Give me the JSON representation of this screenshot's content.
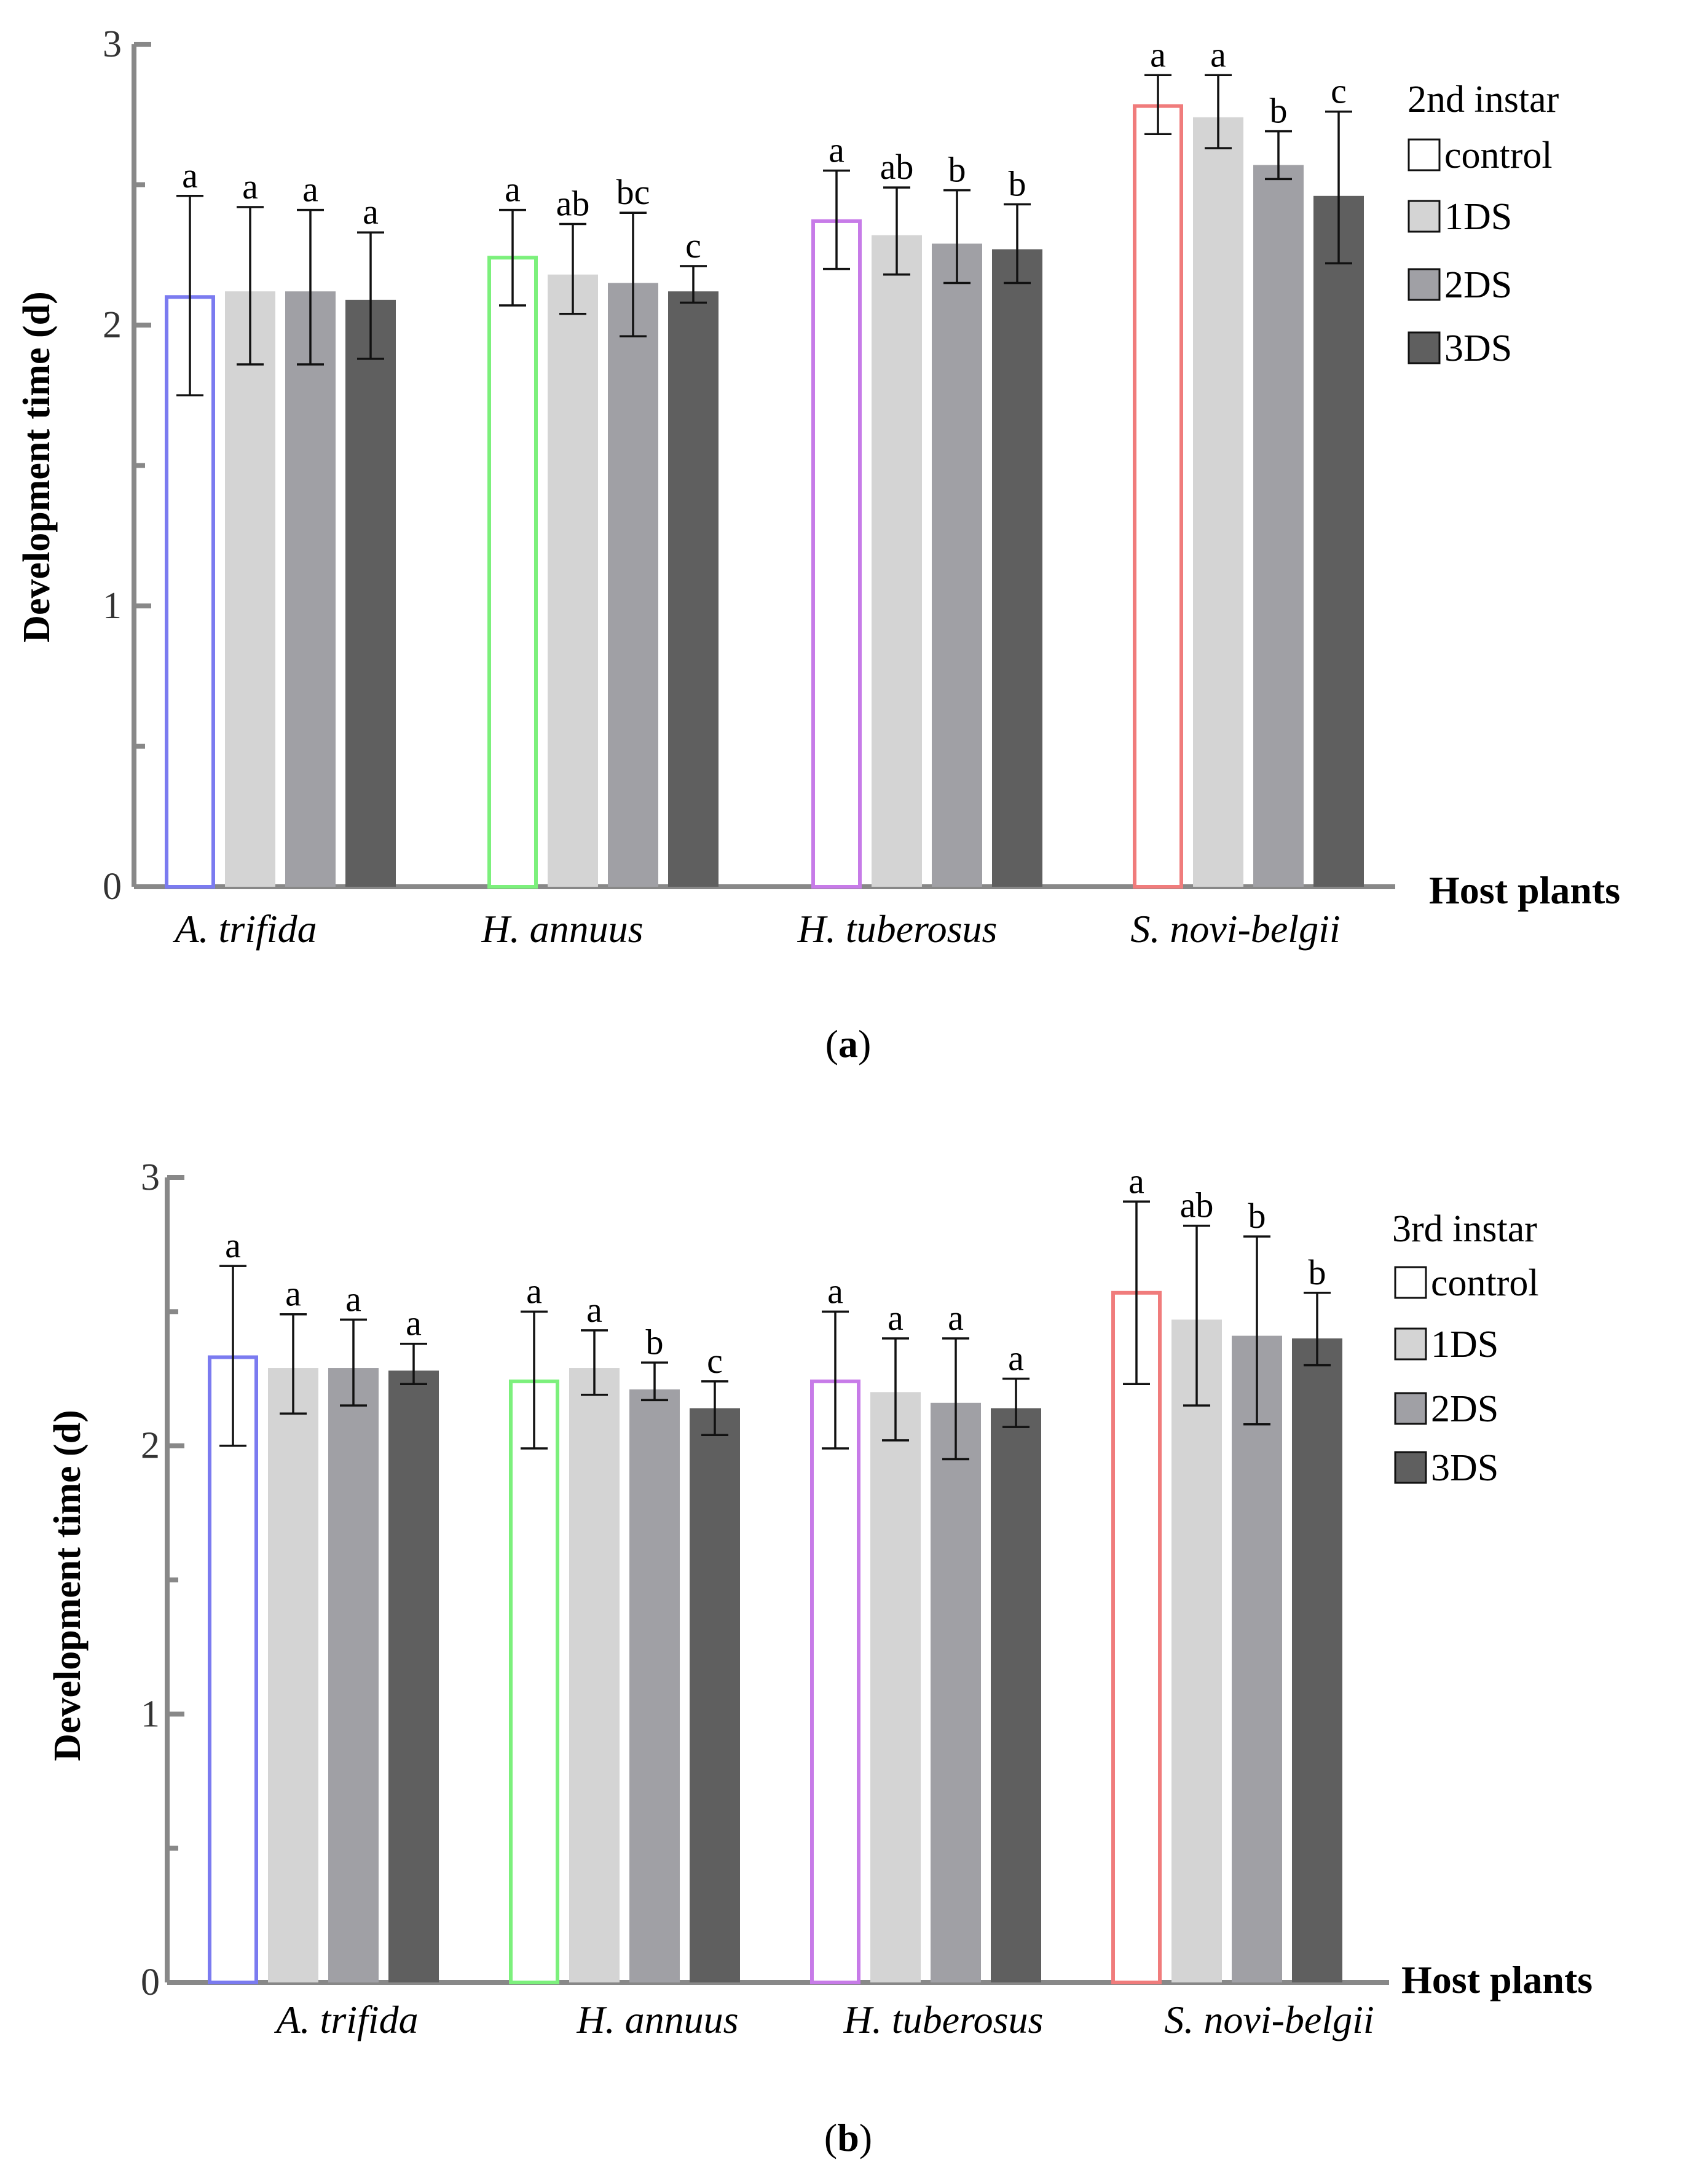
{
  "figure": {
    "categories": [
      "A. trifida",
      "H. annuus",
      "H. tuberosus",
      "S. novi-belgii"
    ],
    "series_names": [
      "control",
      "1DS",
      "2DS",
      "3DS"
    ],
    "control_outline_colors": [
      "#7b7bf0",
      "#7cf07c",
      "#c77be8",
      "#f07c7c"
    ],
    "series_fill_colors": [
      "#ffffff",
      "#d4d4d4",
      "#a0a0a5",
      "#5f5f5f"
    ]
  },
  "chart_data": [
    {
      "type": "bar",
      "caption_label": "a",
      "title": "",
      "xlabel": "Host plants",
      "ylabel": "Development time (d)",
      "ylim": [
        0,
        3
      ],
      "yticks": [
        "0",
        "1",
        "2",
        "3"
      ],
      "legend_title": "2nd instar",
      "categories": [
        "A. trifida",
        "H. annuus",
        "H. tuberosus",
        "S. novi-belgii"
      ],
      "series": [
        {
          "name": "control",
          "values": [
            2.1,
            2.24,
            2.37,
            2.78
          ],
          "err_low": [
            1.75,
            2.07,
            2.2,
            2.68
          ],
          "err_high": [
            2.46,
            2.41,
            2.55,
            2.89
          ],
          "letters": [
            "a",
            "a",
            "a",
            "a"
          ]
        },
        {
          "name": "1DS",
          "values": [
            2.12,
            2.18,
            2.32,
            2.74
          ],
          "err_low": [
            1.86,
            2.04,
            2.18,
            2.63
          ],
          "err_high": [
            2.42,
            2.36,
            2.49,
            2.89
          ],
          "letters": [
            "a",
            "ab",
            "ab",
            "a"
          ]
        },
        {
          "name": "2DS",
          "values": [
            2.12,
            2.15,
            2.29,
            2.57
          ],
          "err_low": [
            1.86,
            1.96,
            2.15,
            2.52
          ],
          "err_high": [
            2.41,
            2.4,
            2.48,
            2.69
          ],
          "letters": [
            "a",
            "bc",
            "b",
            "b"
          ]
        },
        {
          "name": "3DS",
          "values": [
            2.09,
            2.12,
            2.27,
            2.46
          ],
          "err_low": [
            1.88,
            2.08,
            2.15,
            2.22
          ],
          "err_high": [
            2.33,
            2.21,
            2.43,
            2.76
          ],
          "letters": [
            "a",
            "c",
            "b",
            "c"
          ]
        }
      ]
    },
    {
      "type": "bar",
      "caption_label": "b",
      "title": "",
      "xlabel": "Host plants",
      "ylabel": "Development time (d)",
      "ylim": [
        0,
        3
      ],
      "yticks": [
        "0",
        "1",
        "2",
        "3"
      ],
      "legend_title": "3rd instar",
      "categories": [
        "A. trifida",
        "H. annuus",
        "H. tuberosus",
        "S. novi-belgii"
      ],
      "series": [
        {
          "name": "control",
          "values": [
            2.33,
            2.24,
            2.24,
            2.57
          ],
          "err_low": [
            2.0,
            1.99,
            1.99,
            2.23
          ],
          "err_high": [
            2.67,
            2.5,
            2.5,
            2.91
          ],
          "letters": [
            "a",
            "a",
            "a",
            "a"
          ]
        },
        {
          "name": "1DS",
          "values": [
            2.29,
            2.29,
            2.2,
            2.47
          ],
          "err_low": [
            2.12,
            2.19,
            2.02,
            2.15
          ],
          "err_high": [
            2.49,
            2.43,
            2.4,
            2.82
          ],
          "letters": [
            "a",
            "a",
            "a",
            "ab"
          ]
        },
        {
          "name": "2DS",
          "values": [
            2.29,
            2.21,
            2.16,
            2.41
          ],
          "err_low": [
            2.15,
            2.17,
            1.95,
            2.08
          ],
          "err_high": [
            2.47,
            2.31,
            2.4,
            2.78
          ],
          "letters": [
            "a",
            "b",
            "a",
            "b"
          ]
        },
        {
          "name": "3DS",
          "values": [
            2.28,
            2.14,
            2.14,
            2.4
          ],
          "err_low": [
            2.23,
            2.04,
            2.07,
            2.3
          ],
          "err_high": [
            2.38,
            2.24,
            2.25,
            2.57
          ],
          "letters": [
            "a",
            "c",
            "a",
            "b"
          ]
        }
      ]
    }
  ]
}
